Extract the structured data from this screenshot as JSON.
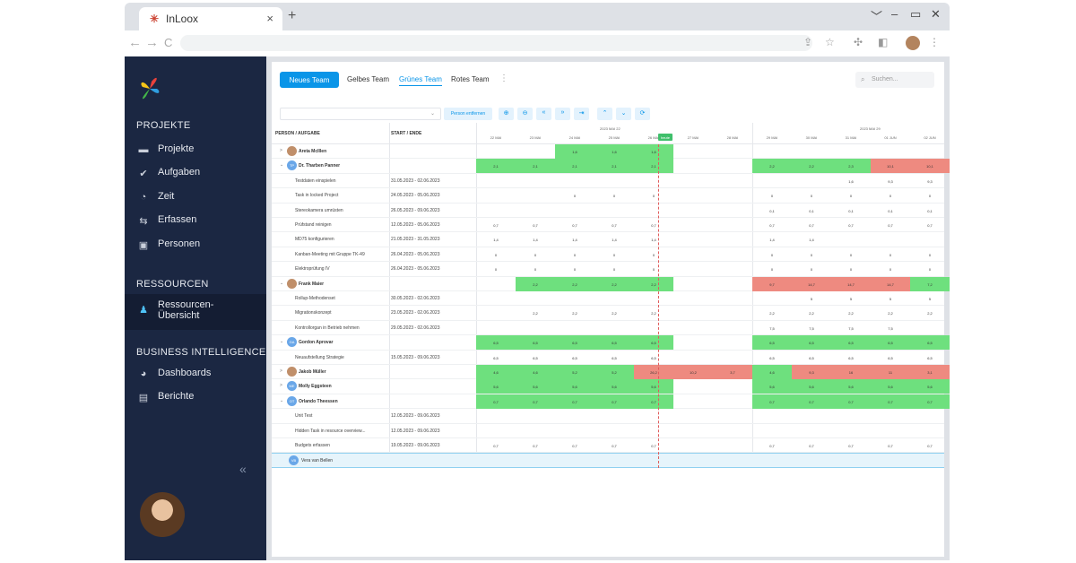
{
  "browser": {
    "tab_title": "InLoox",
    "tab_close": "×",
    "new_tab": "+",
    "minimize": "﹀",
    "dash": "–",
    "restore": "▭",
    "close": "✕",
    "back": "←",
    "forward": "→",
    "reload": "C"
  },
  "sidebar": {
    "sections": [
      {
        "label": "PROJEKTE",
        "items": [
          "Projekte",
          "Aufgaben",
          "Zeit",
          "Erfassen",
          "Personen"
        ]
      },
      {
        "label": "RESSOURCEN",
        "items": [
          "Ressourcen-\nÜbersicht"
        ]
      },
      {
        "label": "BUSINESS INTELLIGENCE",
        "items": [
          "Dashboards",
          "Berichte"
        ]
      }
    ],
    "collapse": "«"
  },
  "teams": {
    "new_button": "Neues Team",
    "tabs": [
      "Gelbes Team",
      "Grünes Team",
      "Rotes Team"
    ],
    "selected": "Grünes Team",
    "search_placeholder": "Suchen..."
  },
  "toolbar": {
    "remove_person": "Person entfernen",
    "icons": [
      "zoom-in",
      "zoom-out",
      "prev-far",
      "next-far",
      "jump-end",
      "collapse-all",
      "expand-all",
      "refresh"
    ],
    "icon_glyphs": [
      "⊕",
      "⊖",
      "«",
      "»",
      "⇥",
      "⌃",
      "⌄",
      "⟳"
    ],
    "dropdown_arrow": "⌄"
  },
  "grid": {
    "col_person": "PERSON / AUFGABE",
    "col_dates": "START / ENDE",
    "weeks": [
      "2023 MAI 22",
      "2023 MAI 29"
    ],
    "days": [
      "22 MAI",
      "23 MAI",
      "24 MAI",
      "25 MAI",
      "26 MAI",
      "27 MAI",
      "28 MAI",
      "29 MAI",
      "30 MAI",
      "31 MAI",
      "01 JUN",
      "02 JUN"
    ],
    "today_label": "heute",
    "rows": [
      {
        "type": "person",
        "expand": ">",
        "initials": "",
        "name": "Areta McIllen",
        "dates": "",
        "cells": [
          "",
          "",
          "1,6",
          "1,6",
          "1,6",
          "",
          "",
          "",
          "",
          "",
          "",
          ""
        ],
        "colors": [
          "",
          "",
          "g",
          "g",
          "g",
          "",
          "",
          "",
          "",
          "",
          "",
          ""
        ]
      },
      {
        "type": "person",
        "expand": "⌄",
        "initials": "TP",
        "name": "Dr. Tharben Panner",
        "dates": "",
        "cells": [
          "2,1",
          "2,1",
          "2,1",
          "2,1",
          "2,1",
          "",
          "",
          "2,2",
          "2,2",
          "2,3",
          "10,1",
          "10,1"
        ],
        "colors": [
          "g",
          "g",
          "g",
          "g",
          "g",
          "",
          "",
          "g",
          "g",
          "g",
          "r",
          "r"
        ]
      },
      {
        "type": "task",
        "name": "Testdaten einspielen",
        "dates": "31.05.2023 - 02.06.2023",
        "cells": [
          "",
          "",
          "",
          "",
          "",
          "",
          "",
          "",
          "",
          "1,6",
          "9,3",
          "9,3"
        ]
      },
      {
        "type": "task",
        "name": "Task in locked Project",
        "dates": "24.05.2023 - 05.06.2023",
        "cells": [
          "",
          "",
          "0",
          "0",
          "0",
          "",
          "",
          "0",
          "0",
          "0",
          "0",
          "0"
        ]
      },
      {
        "type": "task",
        "name": "Stereokamera umrüsten",
        "dates": "26.05.2023 - 09.06.2023",
        "cells": [
          "",
          "",
          "",
          "",
          "",
          "",
          "",
          "0,1",
          "0,1",
          "0,1",
          "0,1",
          "0,1"
        ]
      },
      {
        "type": "task",
        "name": "Prüfstand reinigen",
        "dates": "12.05.2023 - 05.06.2023",
        "cells": [
          "0,7",
          "0,7",
          "0,7",
          "0,7",
          "0,7",
          "",
          "",
          "0,7",
          "0,7",
          "0,7",
          "0,7",
          "0,7"
        ]
      },
      {
        "type": "task",
        "name": "MD75 konfigurieren",
        "dates": "21.05.2023 - 31.05.2023",
        "cells": [
          "1,4",
          "1,4",
          "1,4",
          "1,4",
          "1,4",
          "",
          "",
          "1,4",
          "1,4",
          "",
          "",
          ""
        ]
      },
      {
        "type": "task",
        "name": "Kanban-Meeting mit Gruppe TK-49",
        "dates": "26.04.2023 - 05.06.2023",
        "cells": [
          "0",
          "0",
          "0",
          "0",
          "0",
          "",
          "",
          "0",
          "0",
          "0",
          "0",
          "0"
        ]
      },
      {
        "type": "task",
        "name": "Elektroprüfung IV",
        "dates": "26.04.2023 - 05.06.2023",
        "cells": [
          "0",
          "0",
          "0",
          "0",
          "0",
          "",
          "",
          "0",
          "0",
          "0",
          "0",
          "0"
        ]
      },
      {
        "type": "person",
        "expand": "⌄",
        "initials": "",
        "name": "Frank Maier",
        "dates": "",
        "cells": [
          "",
          "2,2",
          "2,2",
          "2,2",
          "2,2",
          "",
          "",
          "9,7",
          "14,7",
          "14,7",
          "14,7",
          "7,2"
        ],
        "colors": [
          "",
          "g",
          "g",
          "g",
          "g",
          "",
          "",
          "r",
          "r",
          "r",
          "r",
          "g"
        ]
      },
      {
        "type": "task",
        "name": "Rollup-Methodenset",
        "dates": "30.05.2023 - 02.06.2023",
        "cells": [
          "",
          "",
          "",
          "",
          "",
          "",
          "",
          "",
          "5",
          "5",
          "5",
          "5"
        ]
      },
      {
        "type": "task",
        "name": "Migrationskonzept",
        "dates": "23.05.2023 - 02.06.2023",
        "cells": [
          "",
          "2,2",
          "2,2",
          "2,2",
          "2,2",
          "",
          "",
          "2,2",
          "2,2",
          "2,2",
          "2,2",
          "2,2"
        ]
      },
      {
        "type": "task",
        "name": "Kontrollorgan in Betrieb nehmen",
        "dates": "29.05.2023 - 02.06.2023",
        "cells": [
          "",
          "",
          "",
          "",
          "",
          "",
          "",
          "7,5",
          "7,5",
          "7,5",
          "7,5",
          ""
        ]
      },
      {
        "type": "person",
        "expand": "⌄",
        "initials": "GA",
        "name": "Gordon Aprovar",
        "dates": "",
        "cells": [
          "6,5",
          "6,5",
          "6,5",
          "6,5",
          "6,5",
          "",
          "",
          "6,5",
          "6,5",
          "6,5",
          "6,5",
          "6,5"
        ],
        "colors": [
          "g",
          "g",
          "g",
          "g",
          "g",
          "",
          "",
          "g",
          "g",
          "g",
          "g",
          "g"
        ]
      },
      {
        "type": "task",
        "name": "Neuaufstellung Strategie",
        "dates": "15.05.2023 - 09.06.2023",
        "cells": [
          "6,5",
          "6,5",
          "6,5",
          "6,5",
          "6,5",
          "",
          "",
          "6,5",
          "6,5",
          "6,5",
          "6,5",
          "6,5"
        ]
      },
      {
        "type": "person",
        "expand": ">",
        "initials": "",
        "name": "Jakob Müller",
        "dates": "",
        "cells": [
          "4,6",
          "4,6",
          "5,2",
          "5,2",
          "26,2",
          "10,2",
          "3,7",
          "4,6",
          "9,3",
          "16",
          "11",
          "3,1"
        ],
        "colors": [
          "g",
          "g",
          "g",
          "g",
          "r",
          "r",
          "r",
          "g",
          "r",
          "r",
          "r",
          "r"
        ]
      },
      {
        "type": "person",
        "expand": ">",
        "initials": "ME",
        "name": "Molly Eggsteen",
        "dates": "",
        "cells": [
          "5,6",
          "5,6",
          "5,6",
          "5,6",
          "5,6",
          "",
          "",
          "5,6",
          "5,6",
          "5,6",
          "5,6",
          "5,6"
        ],
        "colors": [
          "g",
          "g",
          "g",
          "g",
          "g",
          "",
          "",
          "g",
          "g",
          "g",
          "g",
          "g"
        ]
      },
      {
        "type": "person",
        "expand": "⌄",
        "initials": "OT",
        "name": "Orlando Theessen",
        "dates": "",
        "cells": [
          "0,7",
          "0,7",
          "0,7",
          "0,7",
          "0,7",
          "",
          "",
          "0,7",
          "0,7",
          "0,7",
          "0,7",
          "0,7"
        ],
        "colors": [
          "g",
          "g",
          "g",
          "g",
          "g",
          "",
          "",
          "g",
          "g",
          "g",
          "g",
          "g"
        ]
      },
      {
        "type": "task",
        "name": "Unit Test",
        "dates": "12.05.2023 - 09.06.2023",
        "cells": [
          "",
          "",
          "",
          "",
          "",
          "",
          "",
          "",
          "",
          "",
          "",
          ""
        ]
      },
      {
        "type": "task",
        "name": "Hidden Task in resource overview...",
        "dates": "12.05.2023 - 09.06.2023",
        "cells": [
          "",
          "",
          "",
          "",
          "",
          "",
          "",
          "",
          "",
          "",
          "",
          ""
        ]
      },
      {
        "type": "task",
        "name": "Budgets erfassen",
        "dates": "19.05.2023 - 09.06.2023",
        "cells": [
          "0,7",
          "0,7",
          "0,7",
          "0,7",
          "0,7",
          "",
          "",
          "0,7",
          "0,7",
          "0,7",
          "0,7",
          "0,7"
        ]
      },
      {
        "type": "person",
        "expand": "",
        "initials": "VB",
        "name": "Vera van Bellen",
        "dates": "",
        "cells": [
          "",
          "",
          "",
          "",
          "",
          "",
          "",
          "",
          "",
          "",
          "",
          ""
        ],
        "colors": [
          "",
          "",
          "",
          "",
          "",
          "",
          "",
          "",
          "",
          "",
          "",
          ""
        ],
        "last": true
      }
    ]
  },
  "colors": {
    "accent": "#0a95e8",
    "over": "#ee8a80",
    "ok": "#6ee07e",
    "sidebar": "#1b2742"
  }
}
